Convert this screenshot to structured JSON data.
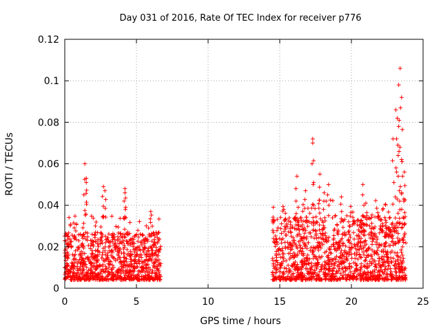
{
  "chart_data": {
    "type": "scatter",
    "title": "Day 031 of 2016, Rate Of TEC Index for receiver p776",
    "xlabel": "GPS time / hours",
    "ylabel": "ROTI / TECUs",
    "xlim": [
      0,
      25
    ],
    "ylim": [
      0,
      0.12
    ],
    "xticks": [
      0,
      5,
      10,
      15,
      20,
      25
    ],
    "xtick_labels": [
      "0",
      "5",
      "10",
      "15",
      "20",
      "25"
    ],
    "yticks": [
      0,
      0.02,
      0.04,
      0.06,
      0.08,
      0.1,
      0.12
    ],
    "ytick_labels": [
      "0",
      "0.02",
      "0.04",
      "0.06",
      "0.08",
      "0.1",
      "0.12"
    ],
    "grid": true,
    "marker": "+",
    "color": "#ff0000",
    "series": [
      {
        "name": "ROTI",
        "segments": [
          {
            "x_range": [
              0.0,
              6.7
            ],
            "typical_range": [
              0.004,
              0.027
            ],
            "note": "dense band of samples, first data block"
          },
          {
            "x_range": [
              14.5,
              23.8
            ],
            "typical_range": [
              0.004,
              0.035
            ],
            "note": "dense band of samples, second data block"
          }
        ],
        "peaks": [
          {
            "x": 1.4,
            "y": 0.06
          },
          {
            "x": 1.5,
            "y": 0.053
          },
          {
            "x": 1.5,
            "y": 0.051
          },
          {
            "x": 2.7,
            "y": 0.049
          },
          {
            "x": 2.8,
            "y": 0.047
          },
          {
            "x": 4.2,
            "y": 0.048
          },
          {
            "x": 4.2,
            "y": 0.046
          },
          {
            "x": 6.0,
            "y": 0.037
          },
          {
            "x": 16.2,
            "y": 0.054
          },
          {
            "x": 16.8,
            "y": 0.047
          },
          {
            "x": 17.3,
            "y": 0.072
          },
          {
            "x": 17.3,
            "y": 0.07
          },
          {
            "x": 17.8,
            "y": 0.055
          },
          {
            "x": 18.1,
            "y": 0.046
          },
          {
            "x": 18.4,
            "y": 0.05
          },
          {
            "x": 19.3,
            "y": 0.044
          },
          {
            "x": 20.8,
            "y": 0.05
          },
          {
            "x": 22.9,
            "y": 0.072
          },
          {
            "x": 23.1,
            "y": 0.086
          },
          {
            "x": 23.2,
            "y": 0.082
          },
          {
            "x": 23.3,
            "y": 0.078
          },
          {
            "x": 23.3,
            "y": 0.098
          },
          {
            "x": 23.4,
            "y": 0.106
          },
          {
            "x": 23.5,
            "y": 0.092
          },
          {
            "x": 23.5,
            "y": 0.062
          },
          {
            "x": 23.7,
            "y": 0.056
          }
        ]
      }
    ]
  }
}
